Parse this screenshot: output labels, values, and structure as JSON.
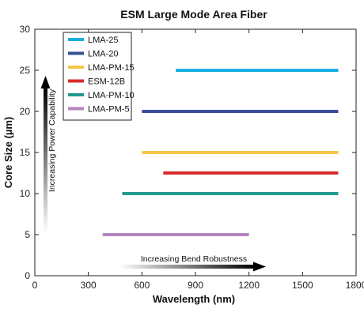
{
  "chart_data": {
    "type": "bar",
    "orientation": "horizontal-range",
    "title": "ESM Large Mode Area Fiber",
    "xlabel": "Wavelength (nm)",
    "ylabel": "Core Size (µm)",
    "xlim": [
      0,
      1800
    ],
    "ylim": [
      0,
      30
    ],
    "xticks": [
      0,
      300,
      600,
      900,
      1200,
      1500,
      1800
    ],
    "yticks": [
      0,
      5,
      10,
      15,
      20,
      25,
      30
    ],
    "grid": false,
    "legend_position": "top-left",
    "series": [
      {
        "name": "LMA-25",
        "color": "#1aade3",
        "core": 25,
        "start": 790,
        "end": 1700
      },
      {
        "name": "LMA-20",
        "color": "#3a4f9a",
        "core": 20,
        "start": 600,
        "end": 1700
      },
      {
        "name": "LMA-PM-15",
        "color": "#f7c54a",
        "core": 15,
        "start": 600,
        "end": 1700
      },
      {
        "name": "ESM-12B",
        "color": "#d52b2b",
        "core": 12.5,
        "start": 720,
        "end": 1700
      },
      {
        "name": "LMA-PM-10",
        "color": "#1f9a8f",
        "core": 10,
        "start": 490,
        "end": 1700
      },
      {
        "name": "LMA-PM-5",
        "color": "#b487c0",
        "core": 5,
        "start": 380,
        "end": 1200
      }
    ],
    "annotations": {
      "vertical": "Increasing Power Capability",
      "horizontal": "Increasing Bend Robustness"
    }
  }
}
